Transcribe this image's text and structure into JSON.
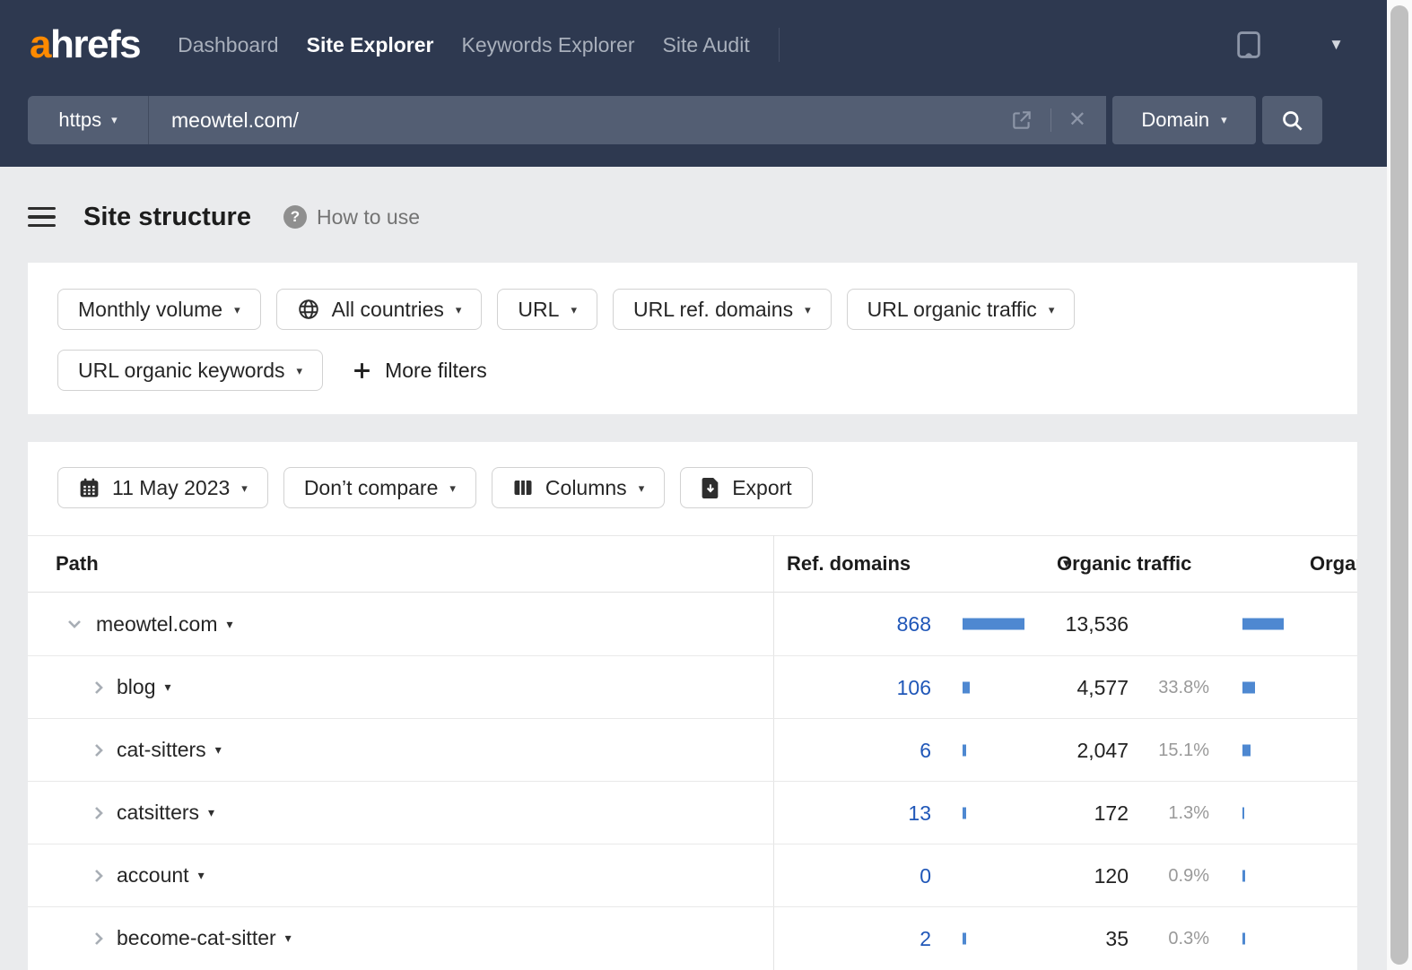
{
  "navbar": {
    "logo_a": "a",
    "logo_rest": "hrefs",
    "links": [
      {
        "label": "Dashboard"
      },
      {
        "label": "Site Explorer"
      },
      {
        "label": "Keywords Explorer"
      },
      {
        "label": "Site Audit"
      }
    ]
  },
  "search": {
    "protocol": "https",
    "query": "meowtel.com/",
    "mode": "Domain"
  },
  "header": {
    "title": "Site structure",
    "help_label": "How to use"
  },
  "filters": {
    "monthly_volume": "Monthly volume",
    "countries": "All countries",
    "url": "URL",
    "url_ref_domains": "URL ref. domains",
    "url_organic_traffic": "URL organic traffic",
    "url_organic_keywords": "URL organic keywords",
    "more_filters": "More filters"
  },
  "toolbar": {
    "date": "11 May 2023",
    "compare": "Don’t compare",
    "columns": "Columns",
    "export": "Export"
  },
  "table": {
    "headers": {
      "path": "Path",
      "ref_domains": "Ref. domains",
      "organic_traffic": "Organic traffic",
      "organic_keywords": "Organic keywords"
    },
    "rows": [
      {
        "path": "meowtel.com",
        "ref_domains": "868",
        "ref_bar": 69,
        "traffic": "13,536",
        "traffic_pct": "",
        "traffic_bar": 46
      },
      {
        "path": "blog",
        "ref_domains": "106",
        "ref_bar": 8,
        "traffic": "4,577",
        "traffic_pct": "33.8%",
        "traffic_bar": 14
      },
      {
        "path": "cat-sitters",
        "ref_domains": "6",
        "ref_bar": 4,
        "traffic": "2,047",
        "traffic_pct": "15.1%",
        "traffic_bar": 9
      },
      {
        "path": "catsitters",
        "ref_domains": "13",
        "ref_bar": 4,
        "traffic": "172",
        "traffic_pct": "1.3%",
        "traffic_bar": 2
      },
      {
        "path": "account",
        "ref_domains": "0",
        "ref_bar": 0,
        "traffic": "120",
        "traffic_pct": "0.9%",
        "traffic_bar": 3
      },
      {
        "path": "become-cat-sitter",
        "ref_domains": "2",
        "ref_bar": 4,
        "traffic": "35",
        "traffic_pct": "0.3%",
        "traffic_bar": 3
      }
    ]
  },
  "colors": {
    "navbar_bg": "#2e3950",
    "search_bg": "#535e73",
    "logo_orange": "#ff8a00",
    "link_blue": "#2057b8",
    "bar_blue": "#4e88d1"
  }
}
